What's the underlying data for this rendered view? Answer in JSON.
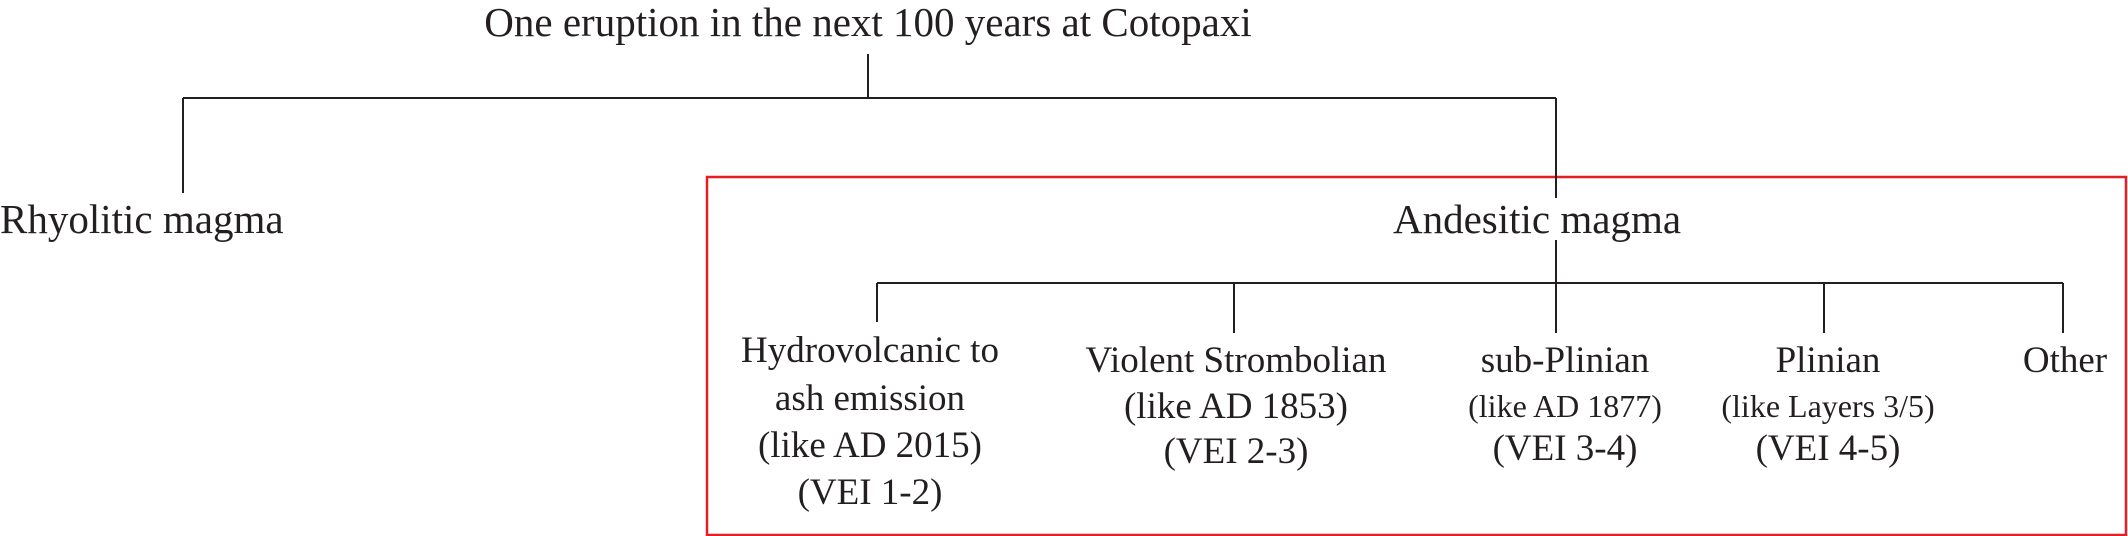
{
  "root": {
    "label": "One eruption in the next 100 years at Cotopaxi"
  },
  "branches": {
    "rhyolitic": "Rhyolitic magma",
    "andesitic": "Andesitic magma"
  },
  "styles": [
    {
      "line1": "Hydrovolcanic to",
      "line2": "ash emission",
      "analogue": "(like AD 2015)",
      "vei": "(VEI 1-2)"
    },
    {
      "name": "Violent Strombolian",
      "analogue": "(like AD 1853)",
      "vei": "(VEI 2-3)"
    },
    {
      "name": "sub-Plinian",
      "analogue": "(like AD 1877)",
      "vei": "(VEI 3-4)"
    },
    {
      "name": "Plinian",
      "analogue": "(like Layers 3/5)",
      "vei": "(VEI 4-5)"
    },
    {
      "name": "Other"
    }
  ],
  "colors": {
    "line": "#231f20",
    "highlight_box": "#e31e24",
    "text": "#231f20"
  }
}
